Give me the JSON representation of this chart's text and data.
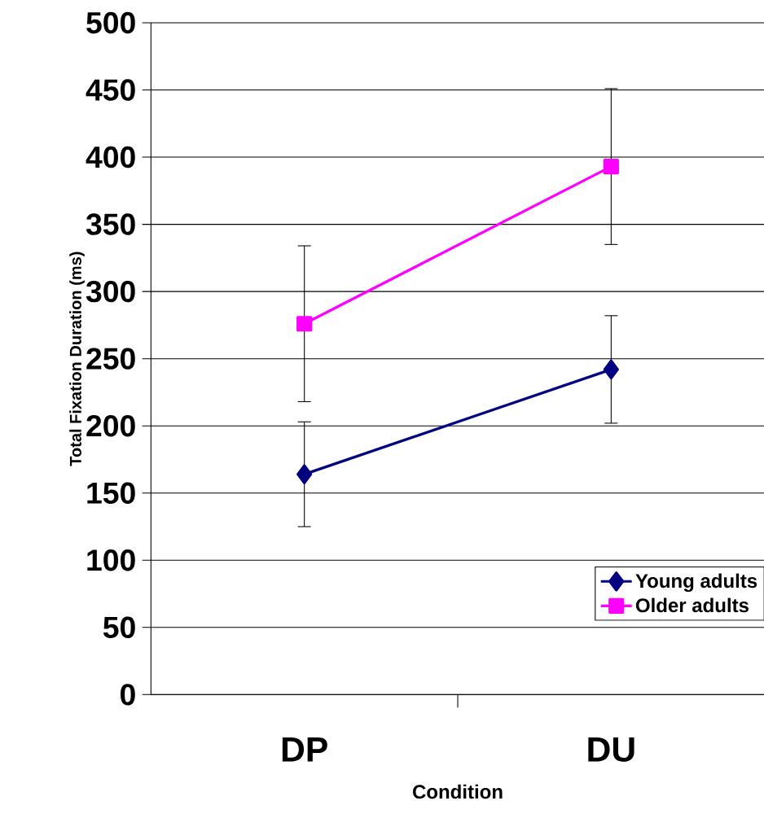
{
  "chart_data": {
    "type": "line",
    "xlabel": "Condition",
    "ylabel": "Total Fixation Duration (ms)",
    "categories": [
      "DP",
      "DU"
    ],
    "series": [
      {
        "name": "Young adults",
        "color": "#000080",
        "values": [
          164,
          242
        ],
        "errors": [
          39,
          40
        ],
        "marker": "diamond"
      },
      {
        "name": "Older adults",
        "color": "#ff00ff",
        "values": [
          276,
          393
        ],
        "errors": [
          58,
          58
        ],
        "marker": "square"
      }
    ],
    "ylim": [
      0,
      500
    ],
    "yticks": [
      0,
      50,
      100,
      150,
      200,
      250,
      300,
      350,
      400,
      450,
      500
    ],
    "grid": "y",
    "legend": "bottom right",
    "line_style": "solid"
  }
}
